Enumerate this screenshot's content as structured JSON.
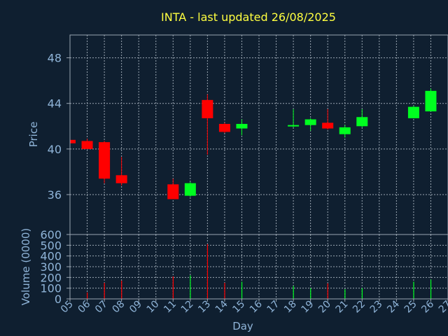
{
  "chart_data": [
    {
      "type": "candlestick",
      "title": "INTA - last updated 26/08/2025",
      "ylabel": "Price",
      "ylim": [
        32.5,
        50.0
      ],
      "yticks": [
        36,
        40,
        44,
        48
      ],
      "grid": true,
      "colors": {
        "up": "#00ff20",
        "down": "#ff0000"
      },
      "x": [
        "05",
        "06",
        "07",
        "08",
        "11",
        "12",
        "13",
        "14",
        "15",
        "18",
        "19",
        "20",
        "21",
        "22",
        "25",
        "26"
      ],
      "open": [
        40.8,
        40.7,
        40.6,
        37.7,
        36.9,
        35.9,
        44.3,
        42.2,
        41.8,
        42.1,
        42.1,
        42.3,
        41.3,
        42.0,
        42.7,
        43.3
      ],
      "high": [
        40.9,
        40.9,
        40.7,
        39.3,
        37.4,
        37.1,
        44.8,
        42.3,
        42.6,
        43.5,
        42.7,
        43.5,
        42.1,
        43.5,
        43.8,
        45.3
      ],
      "low": [
        40.4,
        40.0,
        37.0,
        36.8,
        35.6,
        35.8,
        39.5,
        41.4,
        41.2,
        41.9,
        41.6,
        41.7,
        41.0,
        41.9,
        42.7,
        43.3
      ],
      "close": [
        40.5,
        40.0,
        37.4,
        37.0,
        35.6,
        37.0,
        42.7,
        41.5,
        42.2,
        42.1,
        42.6,
        41.8,
        41.9,
        42.8,
        43.7,
        45.1
      ]
    },
    {
      "type": "bar",
      "ylabel": "Volume (0000)",
      "xlabel": "Day",
      "ylim": [
        0,
        600
      ],
      "yticks": [
        0,
        100,
        200,
        300,
        400,
        500,
        600
      ],
      "grid": true,
      "xticks": [
        "05",
        "06",
        "07",
        "08",
        "09",
        "10",
        "11",
        "12",
        "13",
        "14",
        "15",
        "16",
        "17",
        "18",
        "19",
        "20",
        "21",
        "22",
        "23",
        "24",
        "25",
        "26",
        "27"
      ],
      "categories": [
        "05",
        "06",
        "07",
        "08",
        "11",
        "12",
        "13",
        "14",
        "15",
        "18",
        "19",
        "20",
        "21",
        "22",
        "25",
        "26"
      ],
      "values": [
        5,
        60,
        150,
        170,
        210,
        220,
        510,
        150,
        160,
        120,
        100,
        145,
        90,
        100,
        160,
        180
      ],
      "directions": [
        "down",
        "down",
        "down",
        "down",
        "down",
        "up",
        "down",
        "down",
        "up",
        "up",
        "up",
        "down",
        "up",
        "up",
        "up",
        "up"
      ]
    }
  ]
}
